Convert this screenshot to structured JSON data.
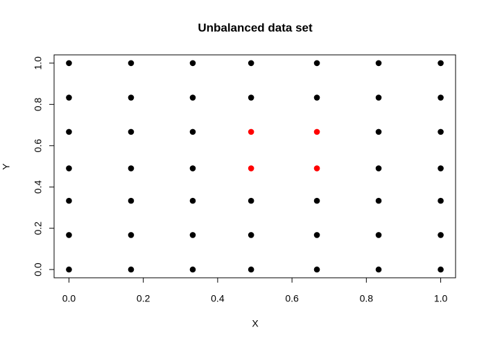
{
  "chart_data": {
    "type": "scatter",
    "title": "Unbalanced data set",
    "x_label": "X",
    "y_label": "Y",
    "xlim": [
      -0.04,
      1.04
    ],
    "ylim": [
      -0.04,
      1.04
    ],
    "xticks": [
      {
        "value": 0,
        "label": "0.0"
      },
      0.2,
      0.4,
      0.6,
      0.8,
      {
        "value": 1,
        "label": "1.0"
      }
    ],
    "yticks": [
      {
        "value": 0,
        "label": "0.0"
      },
      0.2,
      0.4,
      0.6,
      0.8,
      {
        "value": 1,
        "label": "1.0"
      }
    ],
    "series": [
      {
        "color": "#000000",
        "x": [
          0,
          0,
          0,
          0,
          0,
          0,
          0,
          0.167,
          0.167,
          0.167,
          0.167,
          0.167,
          0.167,
          0.167,
          0.333,
          0.333,
          0.333,
          0.333,
          0.333,
          0.333,
          0.333,
          0.49,
          0.49,
          0.49,
          0.49,
          0.49,
          0.667,
          0.667,
          0.667,
          0.667,
          0.667,
          0.833,
          0.833,
          0.833,
          0.833,
          0.833,
          0.833,
          0.833,
          1,
          1,
          1,
          1,
          1,
          1,
          1
        ],
        "values": [
          0,
          0.167,
          0.333,
          0.49,
          0.667,
          0.833,
          1,
          0,
          0.167,
          0.333,
          0.49,
          0.667,
          0.833,
          1,
          0,
          0.167,
          0.333,
          0.49,
          0.667,
          0.833,
          1,
          0,
          0.167,
          0.333,
          0.833,
          1,
          0,
          0.167,
          0.333,
          0.833,
          1,
          0,
          0.167,
          0.333,
          0.49,
          0.667,
          0.833,
          1,
          0,
          0.167,
          0.333,
          0.49,
          0.667,
          0.833,
          1
        ]
      },
      {
        "color": "#ff0000",
        "x": [
          0.49,
          0.49,
          0.667,
          0.667
        ],
        "values": [
          0.49,
          0.667,
          0.49,
          0.667
        ]
      }
    ]
  }
}
